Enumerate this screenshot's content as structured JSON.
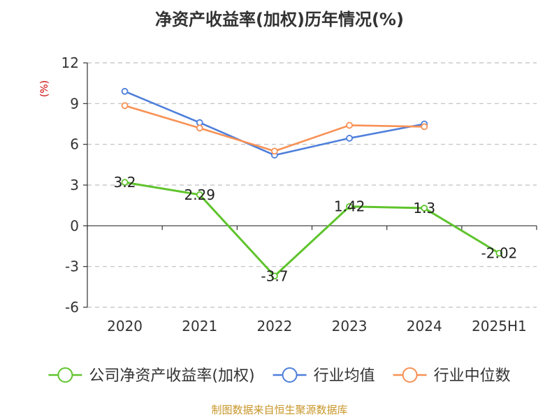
{
  "chart_data": {
    "type": "line",
    "title": "净资产收益率(加权)历年情况(%)",
    "ylabel": "(%)",
    "categories": [
      "2020",
      "2021",
      "2022",
      "2023",
      "2024",
      "2025H1"
    ],
    "ylim": [
      -6,
      12
    ],
    "yticks": [
      12,
      9,
      6,
      3,
      0,
      -3,
      -6
    ],
    "grid": true,
    "legend_position": "bottom",
    "series": [
      {
        "name": "公司净资产收益率(加权)",
        "color": "#5fc42c",
        "values": [
          3.2,
          2.29,
          -3.7,
          1.42,
          1.3,
          -2.02
        ],
        "labels": [
          "3.2",
          "2.29",
          "-3.7",
          "1.42",
          "1.3",
          "-2.02"
        ]
      },
      {
        "name": "行业均值",
        "color": "#4f7fdb",
        "values": [
          9.9,
          7.6,
          5.2,
          6.45,
          7.5,
          null
        ]
      },
      {
        "name": "行业中位数",
        "color": "#f79155",
        "values": [
          8.85,
          7.2,
          5.5,
          7.4,
          7.3,
          null
        ]
      }
    ]
  },
  "source": "制图数据来自恒生聚源数据库"
}
